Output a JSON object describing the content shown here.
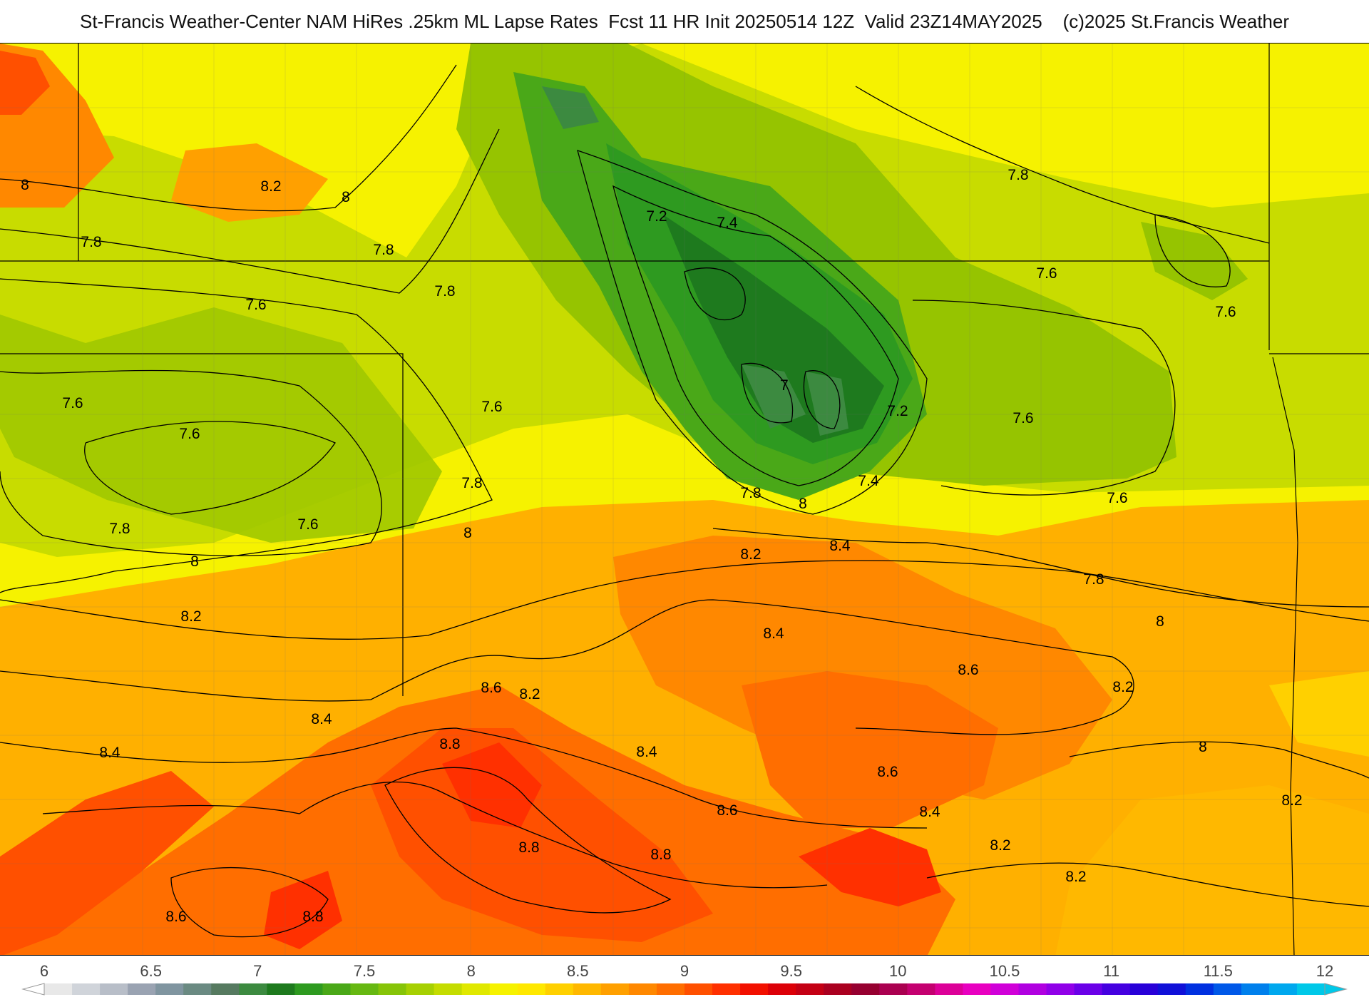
{
  "header": {
    "title": "St-Francis Weather-Center NAM HiRes .25km ML Lapse Rates  Fcst 11 HR Init 20250514 12Z  Valid 23Z14MAY2025    (c)2025 St.Francis Weather"
  },
  "map": {
    "field": "ML Lapse Rates",
    "contour_interval": 0.2,
    "contour_labels": [
      {
        "text": "8.2"
      },
      {
        "text": "8"
      },
      {
        "text": "8"
      },
      {
        "text": "7.8"
      },
      {
        "text": "7.8"
      },
      {
        "text": "7.8"
      },
      {
        "text": "7.6"
      },
      {
        "text": "7.6"
      },
      {
        "text": "7.6"
      },
      {
        "text": "7.6"
      },
      {
        "text": "7.6"
      },
      {
        "text": "7.8"
      },
      {
        "text": "7.8"
      },
      {
        "text": "8"
      },
      {
        "text": "8"
      },
      {
        "text": "8.2"
      },
      {
        "text": "8.4"
      },
      {
        "text": "8.4"
      },
      {
        "text": "8.6"
      },
      {
        "text": "8.2"
      },
      {
        "text": "8.8"
      },
      {
        "text": "8.8"
      },
      {
        "text": "8.8"
      },
      {
        "text": "8.6"
      },
      {
        "text": "8.8"
      },
      {
        "text": "8.4"
      },
      {
        "text": "8.6"
      },
      {
        "text": "7.2"
      },
      {
        "text": "7.4"
      },
      {
        "text": "7"
      },
      {
        "text": "7.2"
      },
      {
        "text": "7.4"
      },
      {
        "text": "7.8"
      },
      {
        "text": "8"
      },
      {
        "text": "8.2"
      },
      {
        "text": "8.4"
      },
      {
        "text": "8.4"
      },
      {
        "text": "8.6"
      },
      {
        "text": "8.6"
      },
      {
        "text": "8.4"
      },
      {
        "text": "8.2"
      },
      {
        "text": "8.2"
      },
      {
        "text": "7.8"
      },
      {
        "text": "7.6"
      },
      {
        "text": "7.6"
      },
      {
        "text": "7.6"
      },
      {
        "text": "7.6"
      },
      {
        "text": "7.8"
      },
      {
        "text": "8"
      },
      {
        "text": "8.2"
      },
      {
        "text": "8"
      },
      {
        "text": "8.2"
      }
    ]
  },
  "colorbar": {
    "ticks": [
      "6",
      "6.5",
      "7",
      "7.5",
      "8",
      "8.5",
      "9",
      "9.5",
      "10",
      "10.5",
      "11",
      "11.5",
      "12"
    ],
    "min": 6,
    "max": 12,
    "colors": [
      "#e8e8e8",
      "#d0d4da",
      "#b8bec8",
      "#9aa3b2",
      "#8095a0",
      "#6a8a82",
      "#567a60",
      "#3c8a40",
      "#1e7a1e",
      "#2e9a20",
      "#4aa818",
      "#66b812",
      "#86c408",
      "#a6d002",
      "#c4dc00",
      "#e0e800",
      "#f6f200",
      "#ffe800",
      "#ffd000",
      "#ffb800",
      "#ffa000",
      "#ff8800",
      "#ff6e00",
      "#ff5000",
      "#ff3000",
      "#f21000",
      "#dc0008",
      "#c40014",
      "#aa0020",
      "#960030",
      "#aa0050",
      "#c40070",
      "#dc0098",
      "#e800c0",
      "#d000d8",
      "#b000e0",
      "#9000e8",
      "#6a00e8",
      "#4400e0",
      "#2800d8",
      "#1010d8",
      "#0030e0",
      "#0058e8",
      "#0080ec",
      "#00a8ee",
      "#00c8e8"
    ]
  }
}
